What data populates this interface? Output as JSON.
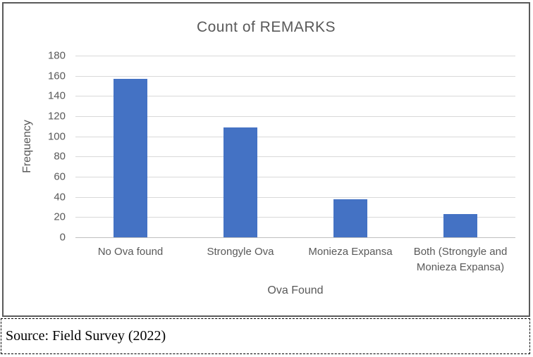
{
  "chart_data": {
    "type": "bar",
    "title": "Count of REMARKS",
    "categories": [
      "No Ova found",
      "Strongyle Ova",
      "Monieza Expansa",
      "Both (Strongyle and Monieza Expansa)"
    ],
    "values": [
      157,
      109,
      38,
      23
    ],
    "xlabel": "Ova Found",
    "ylabel": "Frequency",
    "ylim": [
      0,
      180
    ],
    "ytick_step": 20,
    "grid": true,
    "legend": "none",
    "bar_color": "#4472C4",
    "gridline_color": "#D9D9D9",
    "text_color": "#595959",
    "frame_border_color": "#5a5a5a"
  },
  "caption": {
    "text": "Source: Field Survey (2022)"
  }
}
